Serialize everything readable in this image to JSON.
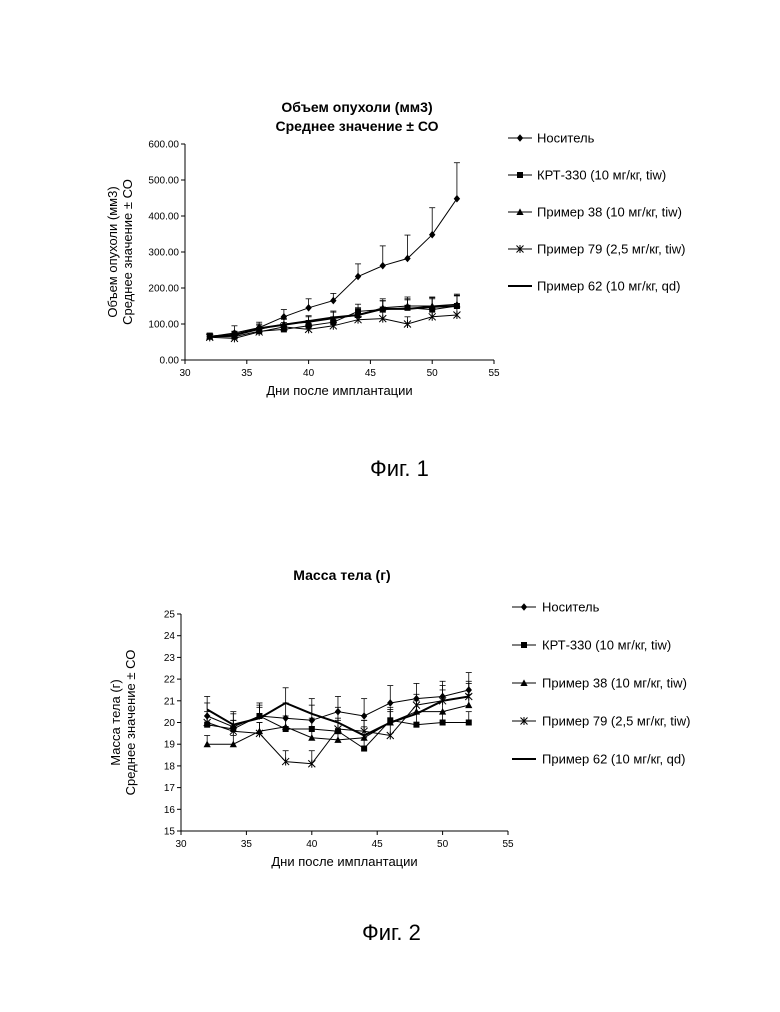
{
  "captions": {
    "fig1": "Фиг. 1",
    "fig2": "Фиг. 2"
  },
  "chart_data": [
    {
      "type": "line",
      "title": [
        "Объем опухоли (мм3)",
        "Среднее значение ± СО"
      ],
      "xlabel": "Дни после имплантации",
      "ylabel": [
        "Объем опухоли (мм3)",
        "Среднее значение ± СО"
      ],
      "xlim": [
        30,
        55
      ],
      "ylim": [
        0,
        600
      ],
      "x_ticks": [
        "30",
        "35",
        "40",
        "45",
        "50",
        "55"
      ],
      "y_ticks": [
        "0.00",
        "100.00",
        "200.00",
        "300.00",
        "400.00",
        "500.00",
        "600.00"
      ],
      "legend_position": "right",
      "x": [
        32,
        34,
        36,
        38,
        40,
        42,
        44,
        46,
        48,
        50,
        52
      ],
      "series": [
        {
          "name": "Носитель",
          "marker": "diamond",
          "values": [
            65,
            75,
            90,
            120,
            145,
            165,
            232,
            262,
            282,
            348,
            448
          ],
          "errors": [
            10,
            20,
            15,
            20,
            25,
            20,
            35,
            55,
            65,
            75,
            100
          ]
        },
        {
          "name": "КРТ-330 (10 мг/кг, tiw)",
          "marker": "square",
          "values": [
            65,
            65,
            80,
            85,
            95,
            105,
            135,
            140,
            145,
            140,
            150
          ],
          "errors": [
            8,
            10,
            10,
            12,
            15,
            15,
            20,
            25,
            25,
            30,
            30
          ]
        },
        {
          "name": "Пример 38 (10 мг/кг, tiw)",
          "marker": "triangle",
          "values": [
            65,
            68,
            85,
            100,
            105,
            115,
            125,
            145,
            150,
            150,
            155
          ],
          "errors": [
            8,
            10,
            12,
            15,
            15,
            18,
            20,
            25,
            25,
            25,
            28
          ]
        },
        {
          "name": "Пример 79 (2,5 мг/кг, tiw)",
          "marker": "star",
          "values": [
            63,
            60,
            78,
            92,
            85,
            95,
            112,
            115,
            100,
            120,
            125
          ],
          "errors": [
            8,
            8,
            10,
            12,
            12,
            15,
            15,
            18,
            20,
            20,
            20
          ]
        },
        {
          "name": "Пример 62 (10 мг/кг, qd)",
          "marker": "none",
          "values": [
            65,
            70,
            88,
            98,
            108,
            118,
            125,
            142,
            142,
            148,
            150
          ],
          "errors": [
            8,
            10,
            12,
            15,
            15,
            18,
            20,
            22,
            25,
            25,
            28
          ]
        }
      ]
    },
    {
      "type": "line",
      "title": [
        "Масса тела (г)"
      ],
      "xlabel": "Дни после имплантации",
      "ylabel": [
        "Масса тела (г)",
        "Среднее значение ± СО"
      ],
      "xlim": [
        30,
        55
      ],
      "ylim": [
        15,
        25
      ],
      "x_ticks": [
        "30",
        "35",
        "40",
        "45",
        "50",
        "55"
      ],
      "y_ticks": [
        "15",
        "16",
        "17",
        "18",
        "19",
        "20",
        "21",
        "22",
        "23",
        "24",
        "25"
      ],
      "legend_position": "right",
      "x": [
        32,
        34,
        36,
        38,
        40,
        42,
        44,
        46,
        48,
        50,
        52
      ],
      "series": [
        {
          "name": "Носитель",
          "marker": "diamond",
          "values": [
            20.3,
            19.8,
            20.3,
            20.2,
            20.1,
            20.5,
            20.3,
            20.9,
            21.1,
            21.2,
            21.5
          ],
          "errors": [
            0.6,
            0.6,
            0.6,
            0.7,
            0.7,
            0.7,
            0.8,
            0.8,
            0.7,
            0.7,
            0.8
          ]
        },
        {
          "name": "КРТ-330 (10 мг/кг, tiw)",
          "marker": "square",
          "values": [
            19.9,
            19.7,
            20.3,
            19.7,
            19.7,
            19.6,
            18.8,
            20.1,
            19.9,
            20.0,
            20.0
          ],
          "errors": [
            0.4,
            0.4,
            0.4,
            0.5,
            0.5,
            0.5,
            0.5,
            0.5,
            0.5,
            0.5,
            0.5
          ]
        },
        {
          "name": "Пример 38 (10 мг/кг, tiw)",
          "marker": "triangle",
          "values": [
            19.0,
            19.0,
            19.6,
            19.8,
            19.3,
            19.2,
            19.3,
            20.0,
            20.5,
            20.5,
            20.8
          ],
          "errors": [
            0.4,
            0.4,
            0.4,
            0.5,
            0.5,
            0.5,
            0.5,
            0.5,
            0.5,
            0.5,
            0.5
          ]
        },
        {
          "name": "Пример 79 (2,5 мг/кг, tiw)",
          "marker": "star",
          "values": [
            20.0,
            19.6,
            19.5,
            18.2,
            18.1,
            19.7,
            19.6,
            19.4,
            20.8,
            21.0,
            21.2
          ],
          "errors": [
            0.5,
            0.5,
            0.5,
            0.5,
            0.6,
            0.5,
            0.5,
            0.5,
            0.5,
            0.5,
            0.6
          ]
        },
        {
          "name": "Пример 62 (10 мг/кг, qd)",
          "marker": "none",
          "values": [
            20.6,
            19.9,
            20.2,
            20.9,
            20.4,
            20.0,
            19.4,
            20.0,
            20.4,
            21.0,
            21.2
          ],
          "errors": [
            0.6,
            0.6,
            0.6,
            0.7,
            0.7,
            0.7,
            0.7,
            0.7,
            0.7,
            0.7,
            0.7
          ]
        }
      ]
    }
  ]
}
